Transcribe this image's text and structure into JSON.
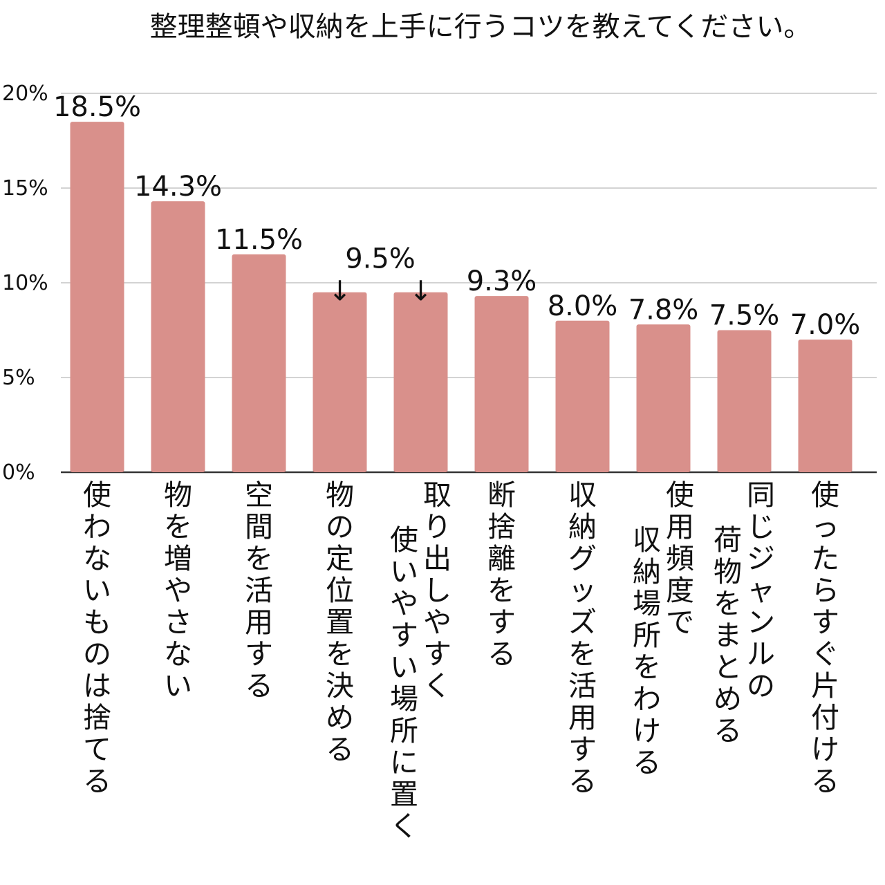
{
  "chart_data": {
    "type": "bar",
    "title": "整理整頓や収納を上手に行うコツを教えてください。",
    "xlabel": "",
    "ylabel": "",
    "ylim": [
      0,
      20
    ],
    "yticks": [
      {
        "value": 0,
        "label": "0%"
      },
      {
        "value": 5,
        "label": "5%"
      },
      {
        "value": 10,
        "label": "10%"
      },
      {
        "value": 15,
        "label": "15%"
      },
      {
        "value": 20,
        "label": "20%"
      }
    ],
    "grid": true,
    "legend": "none",
    "bar_color": "#D9908B",
    "grid_color": "#D3D3D3",
    "categories": [
      [
        "使わないものは捨てる"
      ],
      [
        "物を増やさない"
      ],
      [
        "空間を活用する"
      ],
      [
        "物の定位置を決める"
      ],
      [
        "取り出しやすく",
        "使いやすい場所に置く"
      ],
      [
        "断捨離をする"
      ],
      [
        "収納グッズを活用する"
      ],
      [
        "使用頻度で",
        "収納場所をわける"
      ],
      [
        "同じジャンルの",
        "荷物をまとめる"
      ],
      [
        "使ったらすぐ片付ける"
      ]
    ],
    "values": [
      18.5,
      14.3,
      11.5,
      9.5,
      9.5,
      9.3,
      8.0,
      7.8,
      7.5,
      7.0
    ],
    "data_labels": [
      "18.5%",
      "14.3%",
      "11.5%",
      "↓",
      "↓",
      "9.3%",
      "8.0%",
      "7.8%",
      "7.5%",
      "7.0%"
    ],
    "shared_label": "9.5%"
  }
}
